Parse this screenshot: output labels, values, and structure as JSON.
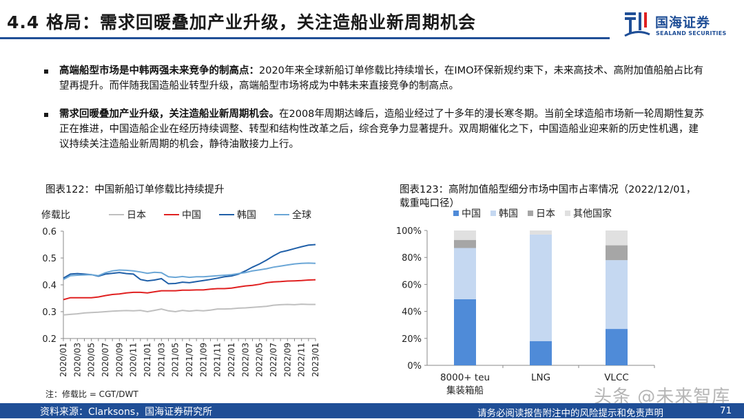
{
  "header": {
    "title": "4.4 格局：需求回暖叠加产业升级，关注造船业新周期机会",
    "logo_cn": "国海证券",
    "logo_en": "SEALAND SECURITIES"
  },
  "bullets": [
    {
      "bold": "高端船型市场是中韩两强未来竞争的制高点：",
      "text": "2020年来全球新船订单修载比持续增长，在IMO环保新规约束下，未来高技术、高附加值船舶占比有望再提升。而伴随我国造船业转型升级，高端船型市场将成为中韩未来直接竞争的制高点。"
    },
    {
      "bold": "需求回暖叠加产业升级，关注造船业新周期机会。",
      "text": "在2008年周期达峰后，造船业经过了十多年的漫长寒冬期。当前全球造船市场新一轮周期性复苏正在推进，中国造船企业在经历持续调整、转型和结构性改革之后，综合竞争力显著提升。双周期催化之下，中国造船业迎来新的历史性机遇，建议持续关注造船业新周期的机会，静待油散接力上行。"
    }
  ],
  "chart_data": [
    {
      "type": "line",
      "title": "图表122：中国新船订单修载比持续提升",
      "ylabel": "修载比",
      "ylim": [
        0.2,
        0.6
      ],
      "yticks": [
        "0.2",
        "0.3",
        "0.4",
        "0.5",
        "0.6"
      ],
      "x": [
        "2020/01",
        "2020/02",
        "2020/03",
        "2020/04",
        "2020/05",
        "2020/06",
        "2020/07",
        "2020/08",
        "2020/09",
        "2020/10",
        "2020/11",
        "2020/12",
        "2021/01",
        "2021/02",
        "2021/03",
        "2021/04",
        "2021/05",
        "2021/06",
        "2021/07",
        "2021/08",
        "2021/09",
        "2021/10",
        "2021/11",
        "2021/12",
        "2022/01",
        "2022/02",
        "2022/03",
        "2022/04",
        "2022/05",
        "2022/06",
        "2022/07",
        "2022/08",
        "2022/09",
        "2022/10",
        "2022/11",
        "2022/12",
        "2023/01"
      ],
      "xtick_labels": [
        "2020/01",
        "2020/03",
        "2020/05",
        "2020/07",
        "2020/09",
        "2020/11",
        "2021/01",
        "2021/03",
        "2021/05",
        "2021/07",
        "2021/09",
        "2021/11",
        "2022/01",
        "2022/03",
        "2022/05",
        "2022/07",
        "2022/09",
        "2022/11",
        "2023/01"
      ],
      "series": [
        {
          "name": "日本",
          "color": "#bfbfbf",
          "values": [
            0.288,
            0.29,
            0.292,
            0.295,
            0.297,
            0.298,
            0.3,
            0.302,
            0.303,
            0.304,
            0.303,
            0.305,
            0.3,
            0.305,
            0.31,
            0.303,
            0.3,
            0.305,
            0.302,
            0.305,
            0.303,
            0.306,
            0.31,
            0.31,
            0.311,
            0.313,
            0.314,
            0.316,
            0.318,
            0.32,
            0.324,
            0.326,
            0.327,
            0.326,
            0.328,
            0.327,
            0.327
          ]
        },
        {
          "name": "中国",
          "color": "#e02020",
          "values": [
            0.345,
            0.352,
            0.352,
            0.352,
            0.352,
            0.355,
            0.36,
            0.364,
            0.366,
            0.37,
            0.372,
            0.372,
            0.37,
            0.374,
            0.378,
            0.378,
            0.378,
            0.38,
            0.38,
            0.381,
            0.381,
            0.384,
            0.386,
            0.386,
            0.388,
            0.392,
            0.396,
            0.398,
            0.402,
            0.408,
            0.411,
            0.412,
            0.414,
            0.415,
            0.416,
            0.418,
            0.419
          ]
        },
        {
          "name": "韩国",
          "color": "#1f5fa8",
          "values": [
            0.425,
            0.44,
            0.442,
            0.44,
            0.438,
            0.432,
            0.44,
            0.443,
            0.446,
            0.442,
            0.44,
            0.42,
            0.415,
            0.418,
            0.423,
            0.404,
            0.405,
            0.41,
            0.408,
            0.412,
            0.416,
            0.42,
            0.425,
            0.43,
            0.433,
            0.44,
            0.452,
            0.466,
            0.478,
            0.492,
            0.508,
            0.522,
            0.528,
            0.535,
            0.542,
            0.548,
            0.55
          ]
        },
        {
          "name": "全球",
          "color": "#6aa6d6",
          "values": [
            0.42,
            0.434,
            0.436,
            0.437,
            0.438,
            0.434,
            0.445,
            0.452,
            0.455,
            0.454,
            0.452,
            0.448,
            0.443,
            0.447,
            0.445,
            0.43,
            0.428,
            0.431,
            0.428,
            0.43,
            0.43,
            0.432,
            0.434,
            0.436,
            0.438,
            0.442,
            0.446,
            0.452,
            0.456,
            0.46,
            0.466,
            0.47,
            0.474,
            0.478,
            0.48,
            0.481,
            0.48
          ]
        }
      ],
      "note": "注：修载比 = CGT/DWT",
      "grid": false,
      "legend": "top"
    },
    {
      "type": "bar",
      "stacked": true,
      "title": "图表123：高附加值船型细分市场中国市占率情况（2022/12/01，",
      "title_line2": "载重吨口径）",
      "categories": [
        "8000+ teu\n集装箱船",
        "LNG",
        "VLCC"
      ],
      "category_lines": [
        [
          "8000+ teu",
          "集装箱船"
        ],
        [
          "LNG"
        ],
        [
          "VLCC"
        ]
      ],
      "ylim": [
        0,
        100
      ],
      "yticks": [
        "0%",
        "20%",
        "40%",
        "60%",
        "80%",
        "100%"
      ],
      "series": [
        {
          "name": "中国",
          "color": "#4f8bd8",
          "values": [
            49,
            18,
            27
          ]
        },
        {
          "name": "韩国",
          "color": "#c5d8f1",
          "values": [
            38,
            79,
            51
          ]
        },
        {
          "name": "日本",
          "color": "#a6a6a6",
          "values": [
            6,
            0,
            11
          ]
        },
        {
          "name": "其他国家",
          "color": "#e0e0e0",
          "values": [
            7,
            3,
            11
          ]
        }
      ],
      "legend": "top"
    }
  ],
  "footer": {
    "source": "资料来源：Clarksons，国海证券研究所",
    "disclaimer": "请务必阅读报告附注中的风险提示和免责声明",
    "page": "71"
  },
  "watermark": "头条 @未来智库"
}
